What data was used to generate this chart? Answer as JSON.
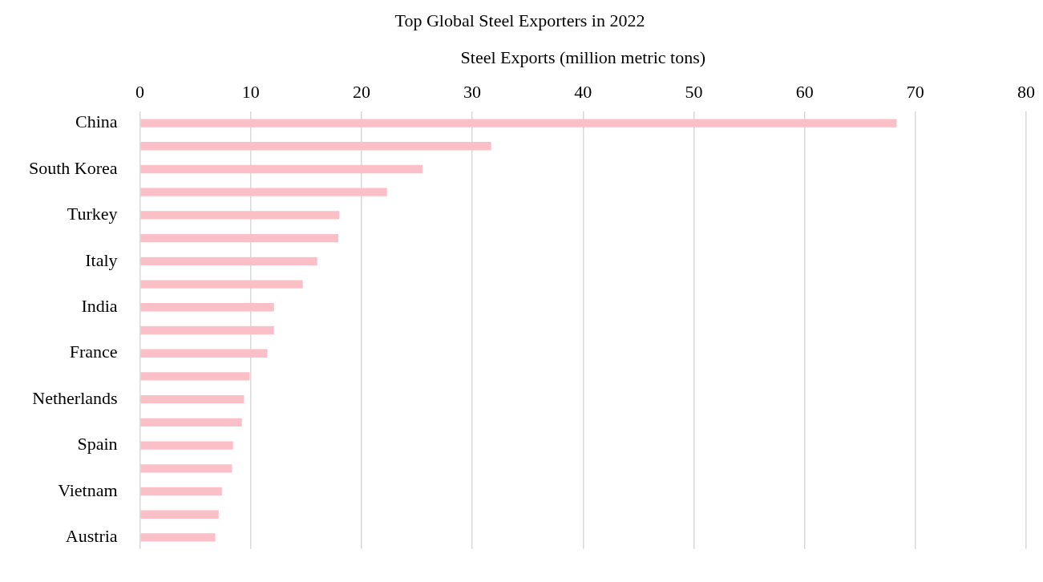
{
  "chart_data": {
    "type": "bar",
    "orientation": "horizontal",
    "title": "Top Global Steel Exporters in 2022",
    "xlabel": "Steel Exports (million metric tons)",
    "categories": [
      "China",
      null,
      "South Korea",
      null,
      "Turkey",
      null,
      "Italy",
      null,
      "India",
      null,
      "France",
      null,
      "Netherlands",
      null,
      "Spain",
      null,
      "Vietnam",
      null,
      "Austria"
    ],
    "values": [
      68.3,
      31.7,
      25.5,
      22.3,
      18.0,
      17.9,
      16.0,
      14.7,
      12.1,
      12.1,
      11.5,
      9.9,
      9.4,
      9.2,
      8.4,
      8.3,
      7.4,
      7.1,
      6.8
    ],
    "color": "#fbbfc8",
    "xlim": [
      0,
      80
    ],
    "xticks": [
      0,
      10,
      20,
      30,
      40,
      50,
      60,
      70,
      80
    ],
    "grid": "x"
  }
}
